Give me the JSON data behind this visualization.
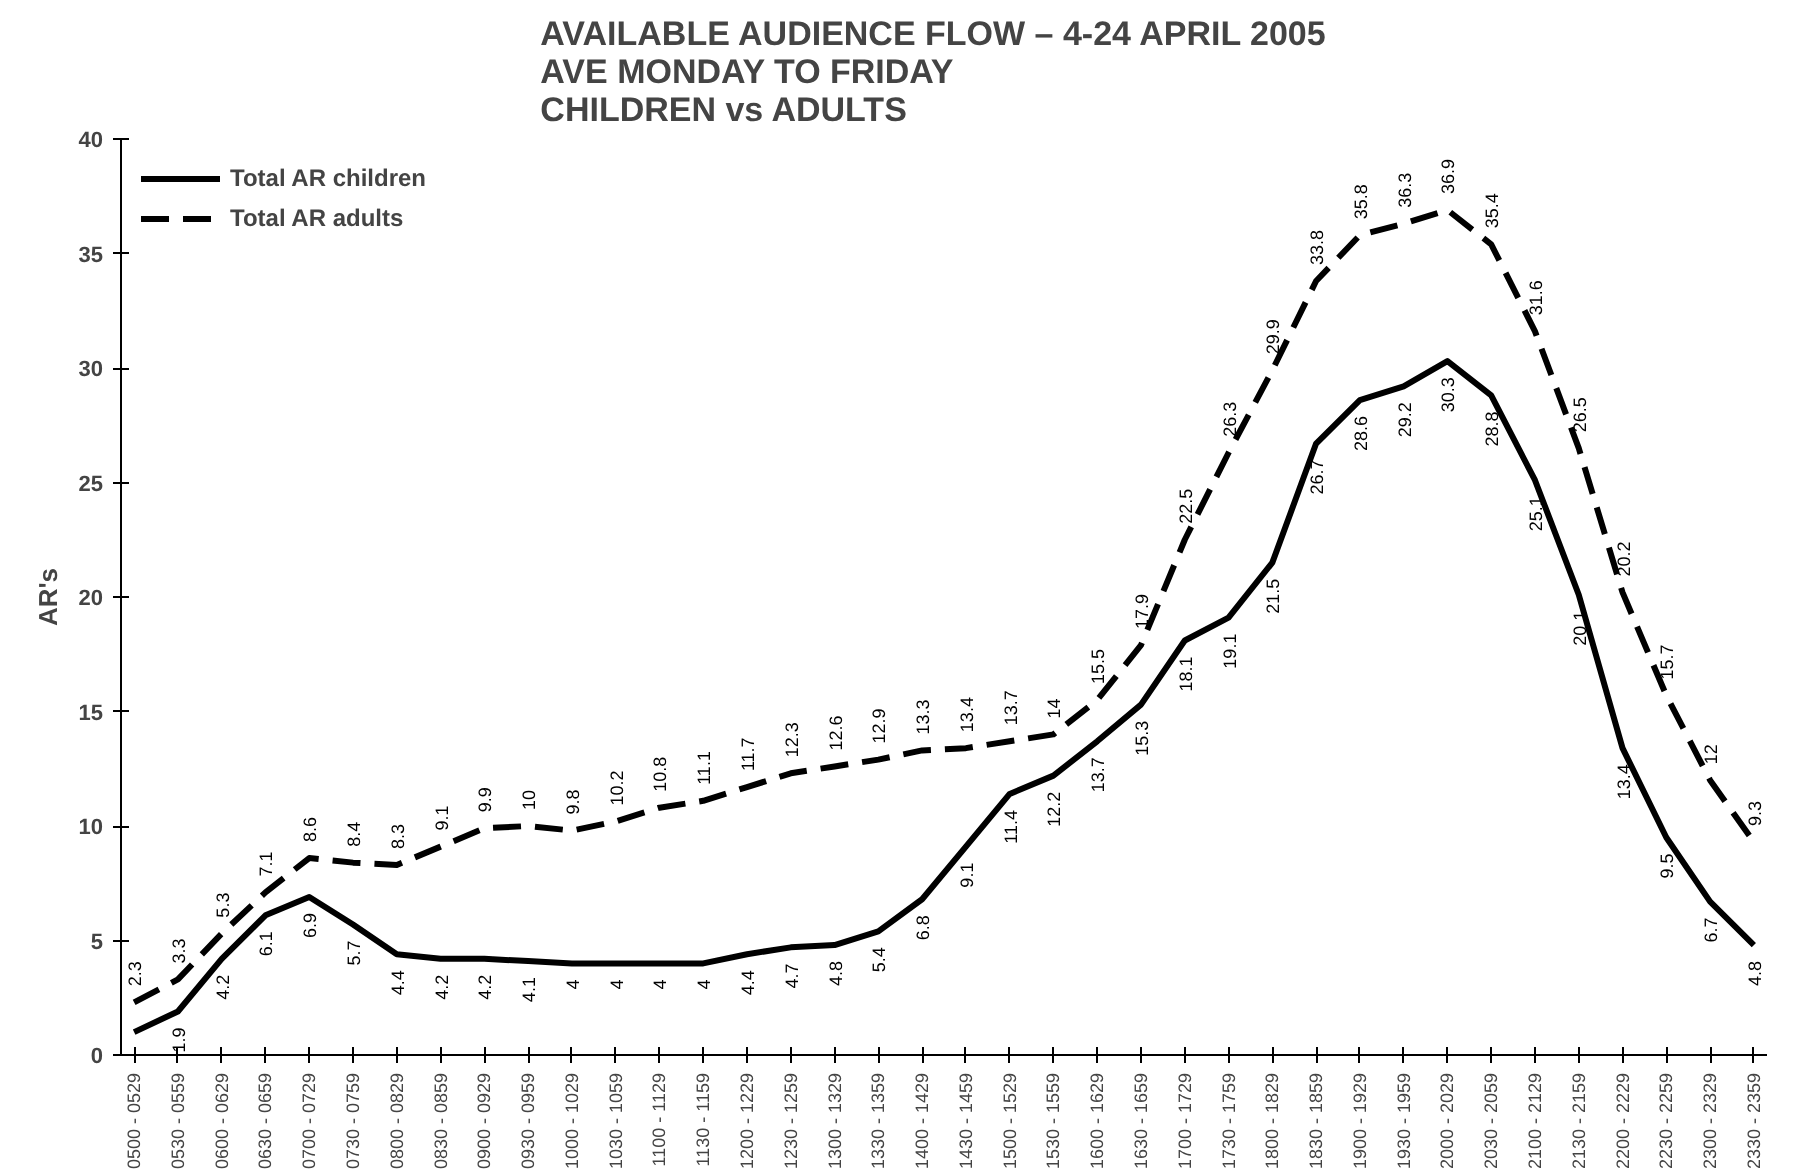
{
  "chart_data": {
    "type": "line",
    "title": "AVAILABLE AUDIENCE FLOW  –  4-24 APRIL 2005\nAVE MONDAY TO FRIDAY\nCHILDREN vs ADULTS",
    "ylabel": "AR's",
    "categories": [
      "0500 - 0529",
      "0530 - 0559",
      "0600 - 0629",
      "0630 - 0659",
      "0700 - 0729",
      "0730 - 0759",
      "0800 - 0829",
      "0830 - 0859",
      "0900 - 0929",
      "0930 - 0959",
      "1000 - 1029",
      "1030 - 1059",
      "1100 - 1129",
      "1130 - 1159",
      "1200 - 1229",
      "1230 - 1259",
      "1300 - 1329",
      "1330 - 1359",
      "1400 - 1429",
      "1430 - 1459",
      "1500 - 1529",
      "1530 - 1559",
      "1600 - 1629",
      "1630 - 1659",
      "1700 - 1729",
      "1730 - 1759",
      "1800 - 1829",
      "1830 - 1859",
      "1900 - 1929",
      "1930 - 1959",
      "2000 - 2029",
      "2030 - 2059",
      "2100 - 2129",
      "2130 - 2159",
      "2200 - 2229",
      "2230 - 2259",
      "2300 - 2329",
      "2330 - 2359"
    ],
    "series": [
      {
        "name": "Total AR children",
        "color": "#000000",
        "line_style": "solid",
        "values": [
          1.0,
          1.9,
          4.2,
          6.1,
          6.9,
          5.7,
          4.4,
          4.2,
          4.2,
          4.1,
          4,
          4,
          4,
          4,
          4.4,
          4.7,
          4.8,
          5.4,
          6.8,
          9.1,
          11.4,
          12.2,
          13.7,
          15.3,
          18.1,
          19.1,
          21.5,
          26.7,
          28.6,
          29.2,
          30.3,
          28.8,
          25.1,
          20.1,
          13.4,
          9.5,
          6.7,
          4.8
        ],
        "value_labels": [
          null,
          "1.9",
          "4.2",
          "6.1",
          "6.9",
          "5.7",
          "4.4",
          "4.2",
          "4.2",
          "4.1",
          "4",
          "4",
          "4",
          "4",
          "4.4",
          "4.7",
          "4.8",
          "5.4",
          "6.8",
          "9.1",
          "11.4",
          "12.2",
          "13.7",
          "15.3",
          "18.1",
          "19.1",
          "21.5",
          "26.7",
          "28.6",
          "29.2",
          "30.3",
          "28.8",
          "25.1",
          "20.1",
          "13.4",
          "9.5",
          "6.7",
          "4.8"
        ]
      },
      {
        "name": "Total AR adults",
        "color": "#000000",
        "line_style": "dashed",
        "values": [
          2.3,
          3.3,
          5.3,
          7.1,
          8.6,
          8.4,
          8.3,
          9.1,
          9.9,
          10,
          9.8,
          10.2,
          10.8,
          11.1,
          11.7,
          12.3,
          12.6,
          12.9,
          13.3,
          13.4,
          13.7,
          14,
          15.5,
          17.9,
          22.5,
          26.3,
          29.9,
          33.8,
          35.8,
          36.3,
          36.9,
          35.4,
          31.6,
          26.5,
          20.2,
          15.7,
          12,
          9.3
        ],
        "value_labels": [
          "2.3",
          "3.3",
          "5.3",
          "7.1",
          "8.6",
          "8.4",
          "8.3",
          "9.1",
          "9.9",
          "10",
          "9.8",
          "10.2",
          "10.8",
          "11.1",
          "11.7",
          "12.3",
          "12.6",
          "12.9",
          "13.3",
          "13.4",
          "13.7",
          "14",
          "15.5",
          "17.9",
          "22.5",
          "26.3",
          "29.9",
          "33.8",
          "35.8",
          "36.3",
          "36.9",
          "35.4",
          "31.6",
          "26.5",
          "20.2",
          "15.7",
          "12",
          "9.3"
        ]
      }
    ],
    "ylim": [
      0,
      40
    ],
    "yticks": [
      0,
      5,
      10,
      15,
      20,
      25,
      30,
      35,
      40
    ],
    "grid": false,
    "legend": "top left",
    "marker": "none"
  }
}
